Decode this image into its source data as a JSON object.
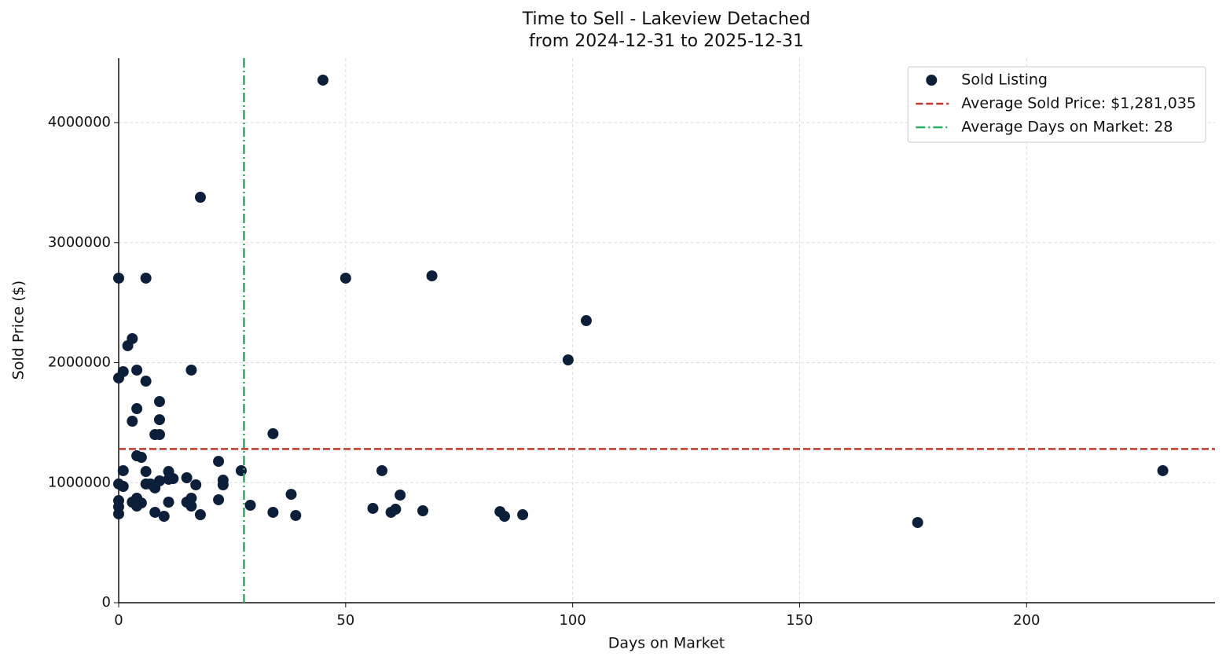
{
  "chart_data": {
    "type": "scatter",
    "title": "Time to Sell - Lakeview Detached",
    "subtitle": "from 2024-12-31 to 2025-12-31",
    "x_label": "Days on Market",
    "y_label": "Sold Price ($)",
    "xlim": [
      0,
      241.5
    ],
    "ylim": [
      0,
      4537000
    ],
    "xticks": [
      0,
      50,
      100,
      150,
      200
    ],
    "yticks": [
      0,
      1000000,
      2000000,
      3000000,
      4000000
    ],
    "grid": true,
    "legend": "upper right",
    "series": [
      {
        "name": "Sold Listing",
        "color": "#0b1f3a",
        "x": [
          45,
          18,
          0,
          6,
          50,
          69,
          103,
          99,
          3,
          2,
          1,
          0,
          4,
          16,
          6,
          9,
          4,
          3,
          9,
          8,
          9,
          34,
          4,
          5,
          22,
          1,
          6,
          11,
          27,
          58,
          230,
          15,
          12,
          11,
          9,
          23,
          0,
          1,
          6,
          7,
          17,
          23,
          8,
          38,
          62,
          4,
          16,
          22,
          0,
          3,
          5,
          11,
          15,
          4,
          16,
          29,
          0,
          56,
          61,
          60,
          67,
          84,
          34,
          8,
          0,
          18,
          89,
          85,
          39,
          10,
          176
        ],
        "values": [
          4354000,
          3378000,
          2704000,
          2704000,
          2704000,
          2723000,
          2350000,
          2023000,
          2200000,
          2141000,
          1925000,
          1872000,
          1938000,
          1938000,
          1846000,
          1676000,
          1617000,
          1512000,
          1525000,
          1401000,
          1401000,
          1408000,
          1224000,
          1211000,
          1178000,
          1100000,
          1093000,
          1093000,
          1100000,
          1100000,
          1100000,
          1041000,
          1034000,
          1028000,
          1015000,
          1021000,
          989000,
          969000,
          989000,
          989000,
          982000,
          982000,
          956000,
          903000,
          897000,
          871000,
          871000,
          858000,
          851000,
          838000,
          831000,
          838000,
          838000,
          805000,
          805000,
          812000,
          799000,
          786000,
          779000,
          753000,
          766000,
          759000,
          753000,
          753000,
          740000,
          733000,
          733000,
          720000,
          727000,
          720000,
          668000
        ]
      }
    ],
    "hlines": [
      {
        "label": "Average Sold Price: $1,281,035",
        "value": 1281035,
        "color": "#c0392b",
        "style": "dashed"
      }
    ],
    "vlines": [
      {
        "label": "Average Days on Market: 28",
        "value": 27.6,
        "color": "#27ae60",
        "style": "dashdot"
      }
    ]
  }
}
